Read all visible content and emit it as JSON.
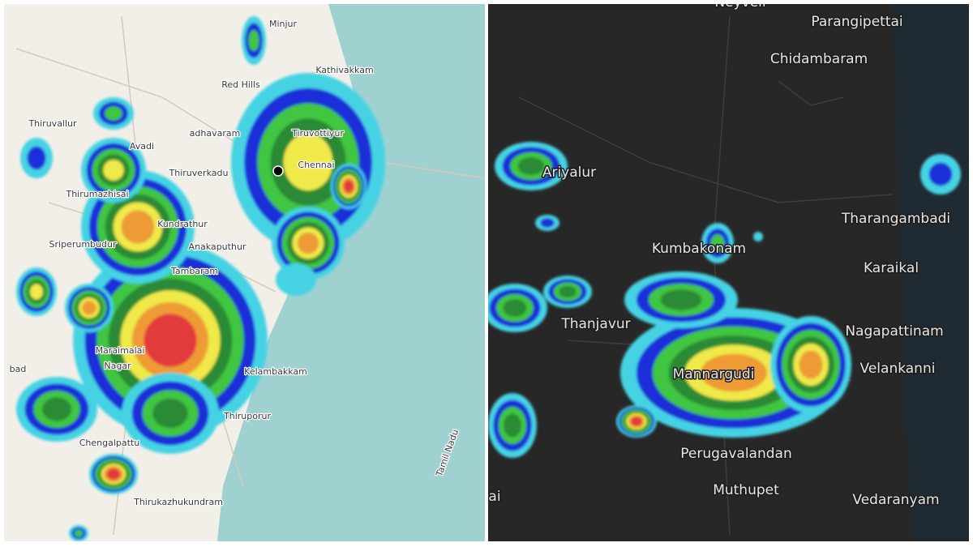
{
  "left_map": {
    "labels": [
      "Minjur",
      "Kathivakkam",
      "Red Hills",
      "Thiruvallur",
      "Tiruvottiyur",
      "adhavaram",
      "Avadi",
      "Chennai",
      "Thiruverkadu",
      "Thirumazhisai",
      "Kundrathur",
      "Sriperumbudur",
      "Anakaputhur",
      "Tambaram",
      "Maraimalai",
      "Nagar",
      "Kelambakkam",
      "Thiruporur",
      "Chengalpattu",
      "Thirukazhukundram",
      "bad",
      "Tamil Nadu"
    ]
  },
  "right_map": {
    "labels": [
      "Neyveli",
      "Parangipettai",
      "Chidambaram",
      "Ariyalur",
      "Tharangambadi",
      "Kumbakonam",
      "Karaikal",
      "Thanjavur",
      "Nagapattinam",
      "Velankanni",
      "Mannargudi",
      "Perugavalandan",
      "Muthupet",
      "Vedaranyam",
      "ai"
    ]
  }
}
